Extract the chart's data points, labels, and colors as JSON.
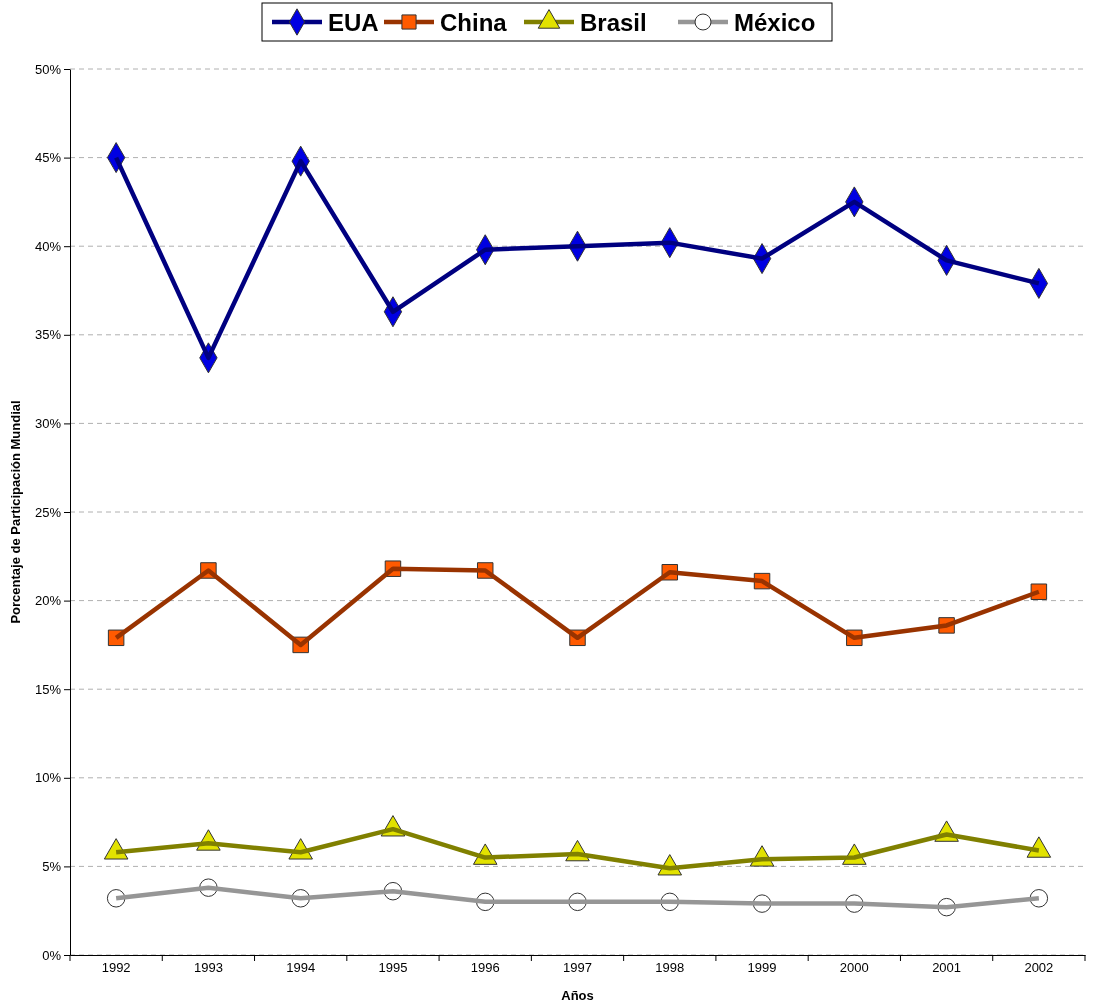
{
  "chart_data": {
    "type": "line",
    "xlabel": "Años",
    "ylabel": "Porcentaje de Participación Mundial",
    "categories": [
      "1992",
      "1993",
      "1994",
      "1995",
      "1996",
      "1997",
      "1998",
      "1999",
      "2000",
      "2001",
      "2002"
    ],
    "series": [
      {
        "name": "EUA",
        "color": "#000080",
        "marker": "diamond",
        "values": [
          45.0,
          33.7,
          44.8,
          36.3,
          39.8,
          40.0,
          40.2,
          39.3,
          42.5,
          39.2,
          37.9
        ]
      },
      {
        "name": "China",
        "color": "#993300",
        "marker": "square",
        "values": [
          17.9,
          21.7,
          17.5,
          21.8,
          21.7,
          17.9,
          21.6,
          21.1,
          17.9,
          18.6,
          20.5
        ]
      },
      {
        "name": "Brasil",
        "color": "#808000",
        "marker": "triangle",
        "values": [
          5.8,
          6.3,
          5.8,
          7.1,
          5.5,
          5.7,
          4.9,
          5.4,
          5.5,
          6.8,
          5.9
        ]
      },
      {
        "name": "México",
        "color": "#969696",
        "marker": "circle",
        "values": [
          3.2,
          3.8,
          3.2,
          3.6,
          3.0,
          3.0,
          3.0,
          2.9,
          2.9,
          2.7,
          3.2
        ]
      }
    ],
    "ylim": [
      0,
      50
    ],
    "yticks": [
      {
        "value": 0,
        "label": "0%"
      },
      {
        "value": 5,
        "label": "5%"
      },
      {
        "value": 10,
        "label": "10%"
      },
      {
        "value": 15,
        "label": "15%"
      },
      {
        "value": 20,
        "label": "20%"
      },
      {
        "value": 25,
        "label": "25%"
      },
      {
        "value": 30,
        "label": "30%"
      },
      {
        "value": 35,
        "label": "35%"
      },
      {
        "value": 40,
        "label": "40%"
      },
      {
        "value": 45,
        "label": "45%"
      },
      {
        "value": 50,
        "label": "50%"
      }
    ],
    "grid": "y",
    "legend": "top",
    "line_style": "solid"
  }
}
